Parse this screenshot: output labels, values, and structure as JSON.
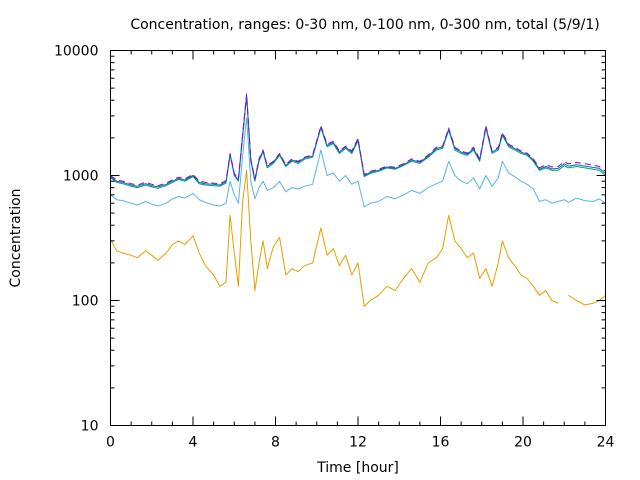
{
  "chart_data": {
    "type": "line",
    "title": "Concentration, ranges: 0-30 nm, 0-100 nm, 0-300 nm, total (5/9/1)",
    "xlabel": "Time [hour]",
    "ylabel": "Concentration",
    "xlim": [
      0,
      24
    ],
    "ylim": [
      10,
      10000
    ],
    "yscale": "log",
    "xticks": [
      0,
      4,
      8,
      12,
      16,
      20,
      24
    ],
    "yticks": [
      10,
      100,
      1000,
      10000
    ],
    "ytick_labels": [
      "10",
      "100",
      "1000",
      "10000"
    ],
    "grid": false,
    "legend": "none",
    "series": [
      {
        "color": "#e69f00",
        "x": [
          0,
          0.3,
          0.6,
          1,
          1.3,
          1.7,
          2,
          2.3,
          2.7,
          3,
          3.3,
          3.6,
          4,
          4.3,
          4.6,
          5,
          5.3,
          5.6,
          5.8,
          6,
          6.2,
          6.4,
          6.6,
          6.8,
          7,
          7.2,
          7.4,
          7.6,
          7.9,
          8.2,
          8.5,
          8.8,
          9.1,
          9.4,
          9.8,
          10.2,
          10.5,
          10.8,
          11.1,
          11.4,
          11.7,
          12,
          12.3,
          12.6,
          13,
          13.4,
          13.8,
          14.2,
          14.6,
          15,
          15.4,
          15.8,
          16.1,
          16.4,
          16.7,
          17,
          17.3,
          17.6,
          17.9,
          18.2,
          18.5,
          18.8,
          19,
          19.3,
          19.6,
          19.9,
          20.2,
          20.5,
          20.8,
          21.1,
          21.4,
          21.7,
          22,
          22.2,
          22.6,
          23,
          23.4,
          23.7,
          24
        ],
        "y": [
          310,
          250,
          240,
          230,
          220,
          250,
          230,
          210,
          240,
          280,
          300,
          280,
          330,
          240,
          190,
          160,
          130,
          140,
          480,
          240,
          130,
          600,
          1100,
          300,
          120,
          200,
          300,
          180,
          270,
          320,
          160,
          180,
          170,
          190,
          200,
          380,
          230,
          260,
          190,
          230,
          160,
          200,
          90,
          100,
          110,
          130,
          120,
          150,
          180,
          140,
          200,
          220,
          260,
          480,
          300,
          260,
          220,
          240,
          150,
          180,
          130,
          200,
          300,
          220,
          190,
          160,
          150,
          130,
          110,
          120,
          100,
          95,
          null,
          110,
          100,
          92,
          95,
          100,
          110
        ]
      },
      {
        "color": "#56b4e9",
        "x": [
          0,
          0.3,
          0.6,
          1,
          1.3,
          1.7,
          2,
          2.3,
          2.7,
          3,
          3.3,
          3.6,
          4,
          4.3,
          4.6,
          5,
          5.3,
          5.6,
          5.8,
          6,
          6.2,
          6.4,
          6.6,
          6.8,
          7,
          7.2,
          7.4,
          7.6,
          7.9,
          8.2,
          8.5,
          8.8,
          9.1,
          9.4,
          9.8,
          10.2,
          10.5,
          10.8,
          11.1,
          11.4,
          11.7,
          12,
          12.3,
          12.6,
          13,
          13.4,
          13.8,
          14.2,
          14.6,
          15,
          15.4,
          15.8,
          16.1,
          16.4,
          16.7,
          17,
          17.3,
          17.6,
          17.9,
          18.2,
          18.5,
          18.8,
          19,
          19.3,
          19.6,
          19.9,
          20.2,
          20.5,
          20.8,
          21.1,
          21.4,
          21.7,
          22,
          22.2,
          22.6,
          23,
          23.4,
          23.7,
          24
        ],
        "y": [
          700,
          640,
          630,
          600,
          580,
          620,
          590,
          570,
          600,
          650,
          680,
          660,
          720,
          640,
          610,
          580,
          570,
          600,
          900,
          700,
          600,
          1400,
          2900,
          900,
          650,
          800,
          900,
          760,
          800,
          900,
          740,
          800,
          780,
          820,
          850,
          1600,
          1000,
          1050,
          900,
          1000,
          850,
          900,
          560,
          600,
          620,
          680,
          650,
          700,
          760,
          720,
          800,
          860,
          900,
          1300,
          1000,
          900,
          860,
          960,
          780,
          1000,
          820,
          960,
          1300,
          1050,
          980,
          900,
          850,
          780,
          620,
          640,
          600,
          620,
          640,
          610,
          660,
          630,
          620,
          650,
          600
        ]
      },
      {
        "color": "#009e73",
        "x": [
          0,
          0.3,
          0.6,
          1,
          1.3,
          1.7,
          2,
          2.3,
          2.7,
          3,
          3.3,
          3.6,
          4,
          4.3,
          4.6,
          5,
          5.3,
          5.6,
          5.8,
          6,
          6.2,
          6.4,
          6.6,
          6.8,
          7,
          7.2,
          7.4,
          7.6,
          7.9,
          8.2,
          8.5,
          8.8,
          9.1,
          9.4,
          9.8,
          10.2,
          10.5,
          10.8,
          11.1,
          11.4,
          11.7,
          12,
          12.3,
          12.6,
          13,
          13.4,
          13.8,
          14.2,
          14.6,
          15,
          15.4,
          15.8,
          16.1,
          16.4,
          16.7,
          17,
          17.3,
          17.6,
          17.9,
          18.2,
          18.5,
          18.8,
          19,
          19.3,
          19.6,
          19.9,
          20.2,
          20.5,
          20.8,
          21.1,
          21.4,
          21.7,
          22,
          22.2,
          22.6,
          23,
          23.4,
          23.7,
          24
        ],
        "y": [
          960,
          880,
          860,
          820,
          800,
          840,
          810,
          790,
          830,
          880,
          930,
          900,
          980,
          860,
          840,
          830,
          820,
          870,
          1450,
          1000,
          900,
          2000,
          4300,
          1300,
          900,
          1300,
          1550,
          1150,
          1250,
          1450,
          1180,
          1300,
          1250,
          1350,
          1400,
          2400,
          1700,
          1800,
          1500,
          1650,
          1500,
          1900,
          980,
          1040,
          1080,
          1150,
          1120,
          1200,
          1300,
          1250,
          1400,
          1600,
          1650,
          2300,
          1600,
          1500,
          1450,
          1600,
          1300,
          2400,
          1500,
          1600,
          2100,
          1700,
          1600,
          1500,
          1450,
          1300,
          1100,
          1150,
          1100,
          1100,
          1200,
          1150,
          1180,
          1150,
          1120,
          1100,
          1000
        ]
      },
      {
        "color": "#0072b2",
        "x": [
          0,
          0.3,
          0.6,
          1,
          1.3,
          1.7,
          2,
          2.3,
          2.7,
          3,
          3.3,
          3.6,
          4,
          4.3,
          4.6,
          5,
          5.3,
          5.6,
          5.8,
          6,
          6.2,
          6.4,
          6.6,
          6.8,
          7,
          7.2,
          7.4,
          7.6,
          7.9,
          8.2,
          8.5,
          8.8,
          9.1,
          9.4,
          9.8,
          10.2,
          10.5,
          10.8,
          11.1,
          11.4,
          11.7,
          12,
          12.3,
          12.6,
          13,
          13.4,
          13.8,
          14.2,
          14.6,
          15,
          15.4,
          15.8,
          16.1,
          16.4,
          16.7,
          17,
          17.3,
          17.6,
          17.9,
          18.2,
          18.5,
          18.8,
          19,
          19.3,
          19.6,
          19.9,
          20.2,
          20.5,
          20.8,
          21.1,
          21.4,
          21.7,
          22,
          22.2,
          22.6,
          23,
          23.4,
          23.7,
          24
        ],
        "y": [
          980,
          900,
          880,
          840,
          820,
          860,
          830,
          810,
          850,
          900,
          950,
          920,
          1000,
          880,
          860,
          850,
          840,
          890,
          1480,
          1020,
          920,
          2050,
          4400,
          1330,
          920,
          1330,
          1580,
          1180,
          1280,
          1480,
          1200,
          1330,
          1280,
          1380,
          1430,
          2450,
          1740,
          1840,
          1540,
          1690,
          1540,
          1940,
          1000,
          1060,
          1100,
          1170,
          1140,
          1220,
          1330,
          1280,
          1430,
          1640,
          1690,
          2350,
          1640,
          1540,
          1480,
          1640,
          1330,
          2450,
          1540,
          1640,
          2150,
          1740,
          1640,
          1540,
          1480,
          1330,
          1120,
          1180,
          1130,
          1140,
          1240,
          1190,
          1220,
          1190,
          1160,
          1140,
          1040
        ]
      },
      {
        "color": "#9400d3",
        "dashed": true,
        "x": [
          0,
          0.3,
          0.6,
          1,
          1.3,
          1.7,
          2,
          2.3,
          2.7,
          3,
          3.3,
          3.6,
          4,
          4.3,
          4.6,
          5,
          5.3,
          5.6,
          5.8,
          6,
          6.2,
          6.4,
          6.6,
          6.8,
          7,
          7.2,
          7.4,
          7.6,
          7.9,
          8.2,
          8.5,
          8.8,
          9.1,
          9.4,
          9.8,
          10.2,
          10.5,
          10.8,
          11.1,
          11.4,
          11.7,
          12,
          12.3,
          12.6,
          13,
          13.4,
          13.8,
          14.2,
          14.6,
          15,
          15.4,
          15.8,
          16.1,
          16.4,
          16.7,
          17,
          17.3,
          17.6,
          17.9,
          18.2,
          18.5,
          18.8,
          19,
          19.3,
          19.6,
          19.9,
          20.2,
          20.5,
          20.8,
          21.1,
          21.4,
          21.7,
          22,
          22.2,
          22.6,
          23,
          23.4,
          23.7,
          24
        ],
        "y": [
          1000,
          920,
          900,
          860,
          840,
          880,
          850,
          830,
          870,
          920,
          970,
          940,
          1020,
          900,
          880,
          870,
          860,
          910,
          1500,
          1040,
          940,
          2080,
          4500,
          1360,
          940,
          1360,
          1600,
          1200,
          1300,
          1500,
          1220,
          1360,
          1300,
          1400,
          1460,
          2500,
          1780,
          1880,
          1570,
          1720,
          1570,
          1980,
          1020,
          1080,
          1120,
          1190,
          1160,
          1240,
          1360,
          1300,
          1460,
          1680,
          1720,
          2400,
          1680,
          1570,
          1510,
          1680,
          1360,
          2500,
          1570,
          1680,
          2200,
          1780,
          1680,
          1570,
          1510,
          1360,
          1150,
          1220,
          1170,
          1180,
          1290,
          1240,
          1270,
          1240,
          1210,
          1180,
          1080
        ]
      }
    ]
  }
}
